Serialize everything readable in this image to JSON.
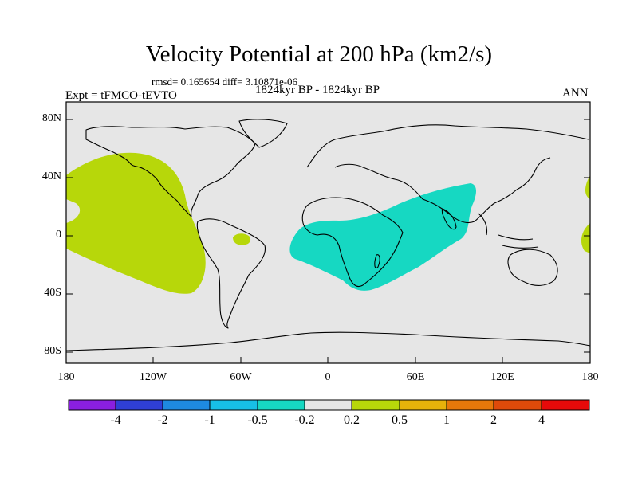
{
  "title": "Velocity Potential at 200 hPa (km2/s)",
  "stats": "rmsd= 0.165654 diff= 3.10871e-06",
  "period": "1824kyr BP - 1824kyr BP",
  "experiment": "Expt = tFMCO-tEVTO",
  "season": "ANN",
  "map": {
    "projection": "cylindrical equidistant",
    "lon_range": [
      -180,
      180
    ],
    "lat_range": [
      -90,
      90
    ],
    "background_color": "#e6e6e6",
    "lat_ticks": [
      "80N",
      "40N",
      "0",
      "40S",
      "80S"
    ],
    "lon_ticks": [
      "180",
      "120W",
      "60W",
      "0",
      "60E",
      "120E",
      "180"
    ]
  },
  "colorbar": {
    "levels": [
      "-4",
      "-2",
      "-1",
      "-0.5",
      "-0.2",
      "0.2",
      "0.5",
      "1",
      "2",
      "4"
    ],
    "colors": [
      "#8a1fe0",
      "#2f3fd6",
      "#1e8ae0",
      "#17c0e6",
      "#16d8c2",
      "#e6e6e6",
      "#b7d70a",
      "#e6b20a",
      "#e6780a",
      "#de4a0a",
      "#e60a0a"
    ]
  }
}
